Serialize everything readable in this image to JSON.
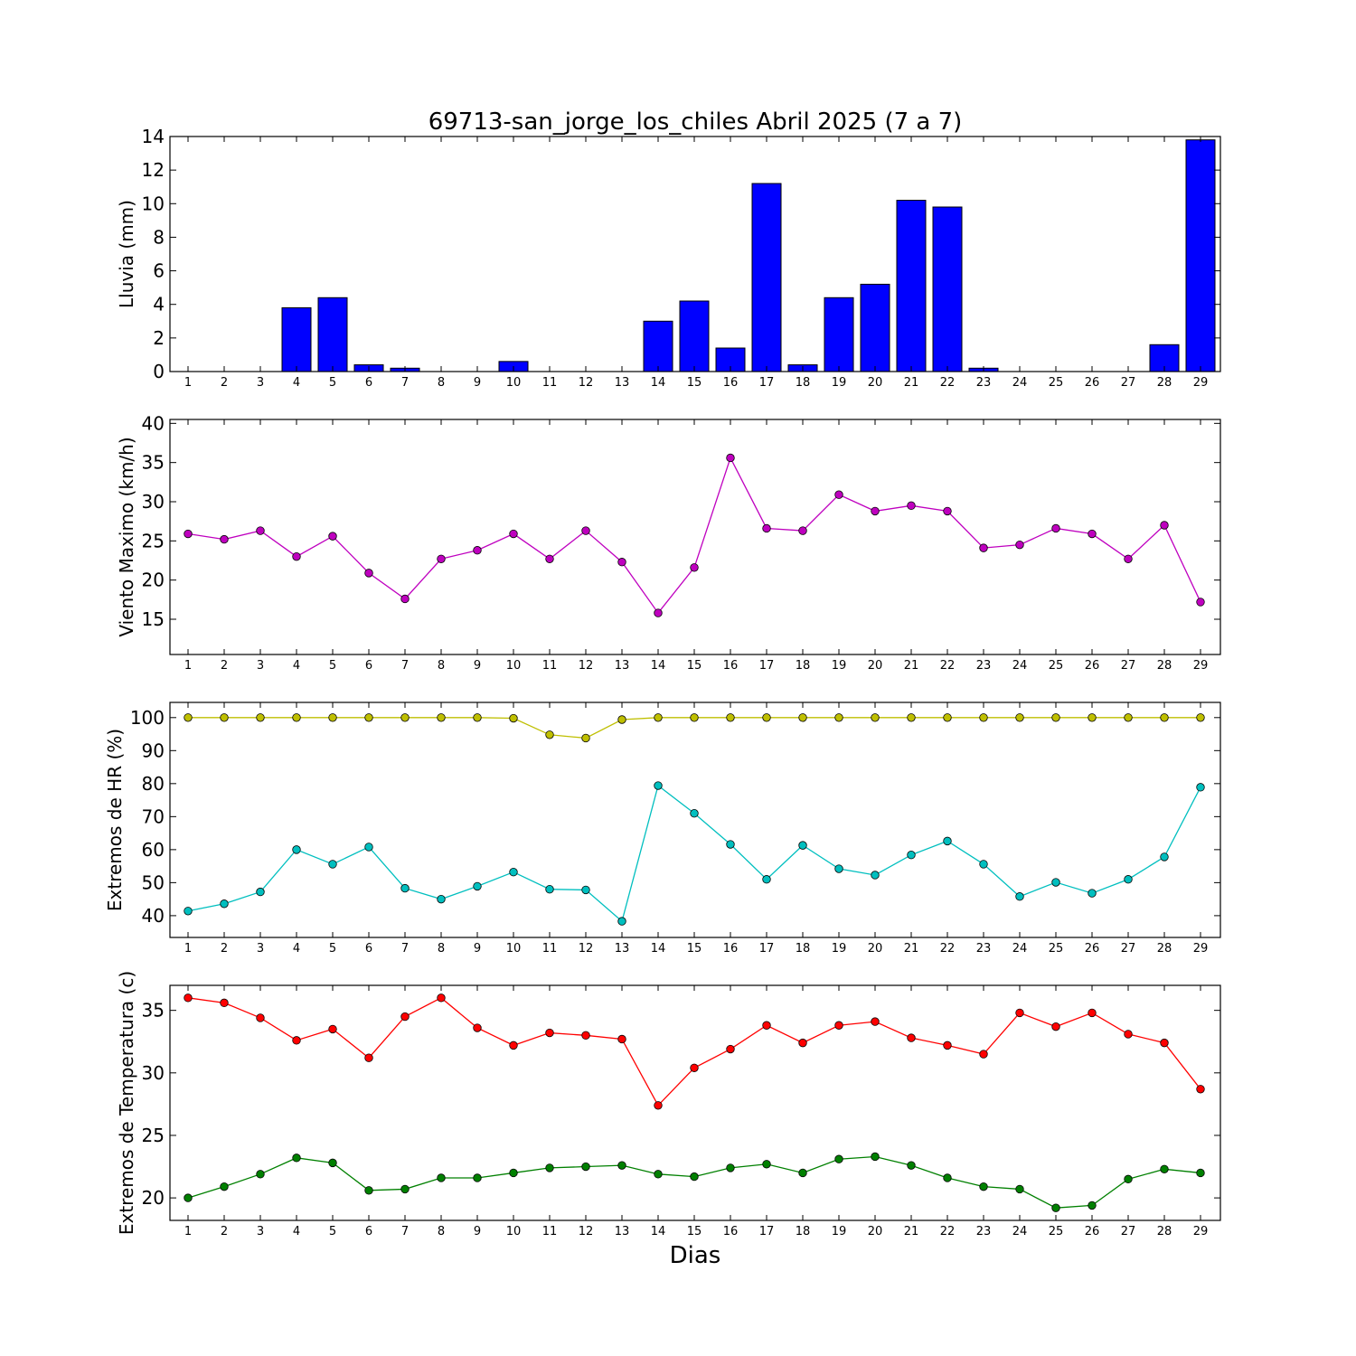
{
  "title": "69713-san_jorge_los_chiles Abril 2025  (7 a 7)",
  "xlabel": "Dias",
  "chart_data": [
    {
      "type": "bar",
      "ylabel": "Lluvia (mm)",
      "ylim": [
        0,
        14
      ],
      "yticks": [
        0,
        2,
        4,
        6,
        8,
        10,
        12,
        14
      ],
      "categories": [
        "1",
        "2",
        "3",
        "4",
        "5",
        "6",
        "7",
        "8",
        "9",
        "10",
        "11",
        "12",
        "13",
        "14",
        "15",
        "16",
        "17",
        "18",
        "19",
        "20",
        "21",
        "22",
        "23",
        "24",
        "25",
        "26",
        "27",
        "28",
        "29"
      ],
      "series": [
        {
          "color": "#0000ff",
          "values": [
            0,
            0,
            0,
            3.8,
            4.4,
            0.4,
            0.2,
            0,
            0,
            0.6,
            0,
            0,
            0,
            3.0,
            4.2,
            1.4,
            11.2,
            0.4,
            4.4,
            5.2,
            10.2,
            9.8,
            0.2,
            0,
            0,
            0,
            0,
            1.6,
            13.8
          ]
        }
      ]
    },
    {
      "type": "line",
      "ylabel": "Viento Maximo (km/h)",
      "ylim": [
        10.5,
        40.5
      ],
      "yticks": [
        15,
        20,
        25,
        30,
        35,
        40
      ],
      "categories": [
        "1",
        "2",
        "3",
        "4",
        "5",
        "6",
        "7",
        "8",
        "9",
        "10",
        "11",
        "12",
        "13",
        "14",
        "15",
        "16",
        "17",
        "18",
        "19",
        "20",
        "21",
        "22",
        "23",
        "24",
        "25",
        "26",
        "27",
        "28",
        "29"
      ],
      "series": [
        {
          "color": "#bf00bf",
          "values": [
            25.9,
            25.2,
            26.3,
            23.0,
            25.6,
            20.9,
            17.6,
            22.7,
            23.8,
            25.9,
            22.7,
            26.3,
            22.3,
            15.8,
            21.6,
            35.6,
            26.6,
            26.3,
            30.9,
            28.8,
            29.5,
            28.8,
            24.1,
            24.5,
            26.6,
            25.9,
            22.7,
            27.0,
            17.2
          ]
        }
      ]
    },
    {
      "type": "line",
      "ylabel": "Extremos de HR (%)",
      "ylim": [
        33.4,
        104.6
      ],
      "yticks": [
        40,
        50,
        60,
        70,
        80,
        90,
        100
      ],
      "categories": [
        "1",
        "2",
        "3",
        "4",
        "5",
        "6",
        "7",
        "8",
        "9",
        "10",
        "11",
        "12",
        "13",
        "14",
        "15",
        "16",
        "17",
        "18",
        "19",
        "20",
        "21",
        "22",
        "23",
        "24",
        "25",
        "26",
        "27",
        "28",
        "29"
      ],
      "series": [
        {
          "color": "#bfbf00",
          "values": [
            100,
            100,
            100,
            100,
            100,
            100,
            100,
            100,
            100,
            99.8,
            94.8,
            93.8,
            99.4,
            100,
            100,
            100,
            100,
            100,
            100,
            100,
            100,
            100,
            100,
            100,
            100,
            100,
            100,
            100,
            100
          ]
        },
        {
          "color": "#00bfbf",
          "values": [
            41.4,
            43.6,
            47.2,
            60.0,
            55.6,
            60.8,
            48.3,
            45.0,
            48.9,
            53.2,
            48.0,
            47.8,
            38.3,
            79.4,
            71.0,
            61.6,
            51.0,
            61.3,
            54.2,
            52.3,
            58.4,
            62.6,
            55.6,
            45.8,
            50.1,
            46.8,
            51.0,
            57.8,
            78.9
          ]
        }
      ]
    },
    {
      "type": "line",
      "ylabel": "Extremos de Temperatura (c)",
      "ylim": [
        18.2,
        37.0
      ],
      "yticks": [
        20,
        25,
        30,
        35
      ],
      "categories": [
        "1",
        "2",
        "3",
        "4",
        "5",
        "6",
        "7",
        "8",
        "9",
        "10",
        "11",
        "12",
        "13",
        "14",
        "15",
        "16",
        "17",
        "18",
        "19",
        "20",
        "21",
        "22",
        "23",
        "24",
        "25",
        "26",
        "27",
        "28",
        "29"
      ],
      "series": [
        {
          "color": "#ff0000",
          "values": [
            36.0,
            35.6,
            34.4,
            32.6,
            33.5,
            31.2,
            34.5,
            36.0,
            33.6,
            32.2,
            33.2,
            33.0,
            32.7,
            27.4,
            30.4,
            31.9,
            33.8,
            32.4,
            33.8,
            34.1,
            32.8,
            32.2,
            31.5,
            34.8,
            33.7,
            34.8,
            33.1,
            32.4,
            28.7
          ]
        },
        {
          "color": "#008000",
          "values": [
            20.0,
            20.9,
            21.9,
            23.2,
            22.8,
            20.6,
            20.7,
            21.6,
            21.6,
            22.0,
            22.4,
            22.5,
            22.6,
            21.9,
            21.7,
            22.4,
            22.7,
            22.0,
            23.1,
            23.3,
            22.6,
            21.6,
            20.9,
            20.7,
            19.2,
            19.4,
            21.5,
            22.3,
            22.0
          ]
        }
      ]
    }
  ]
}
